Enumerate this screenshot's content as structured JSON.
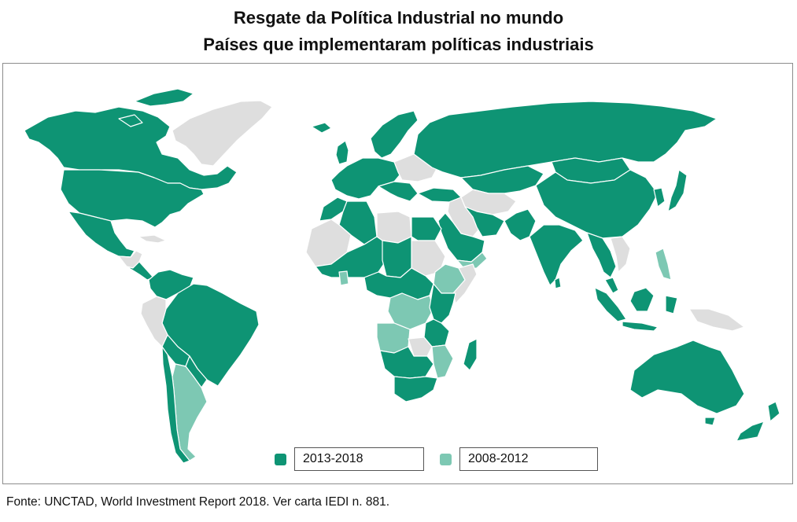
{
  "title_line1": "Resgate da Política Industrial no mundo",
  "title_line2": "Países que implementaram políticas industriais",
  "legend": [
    {
      "label": "2013-2018",
      "color": "#0e9474"
    },
    {
      "label": "2008-2012",
      "color": "#7dc8b3"
    }
  ],
  "colors": {
    "no_policy": "#dedede",
    "border": "#ffffff"
  },
  "source": "Fonte: UNCTAD, World Investment Report 2018. Ver carta IEDI n. 881."
}
